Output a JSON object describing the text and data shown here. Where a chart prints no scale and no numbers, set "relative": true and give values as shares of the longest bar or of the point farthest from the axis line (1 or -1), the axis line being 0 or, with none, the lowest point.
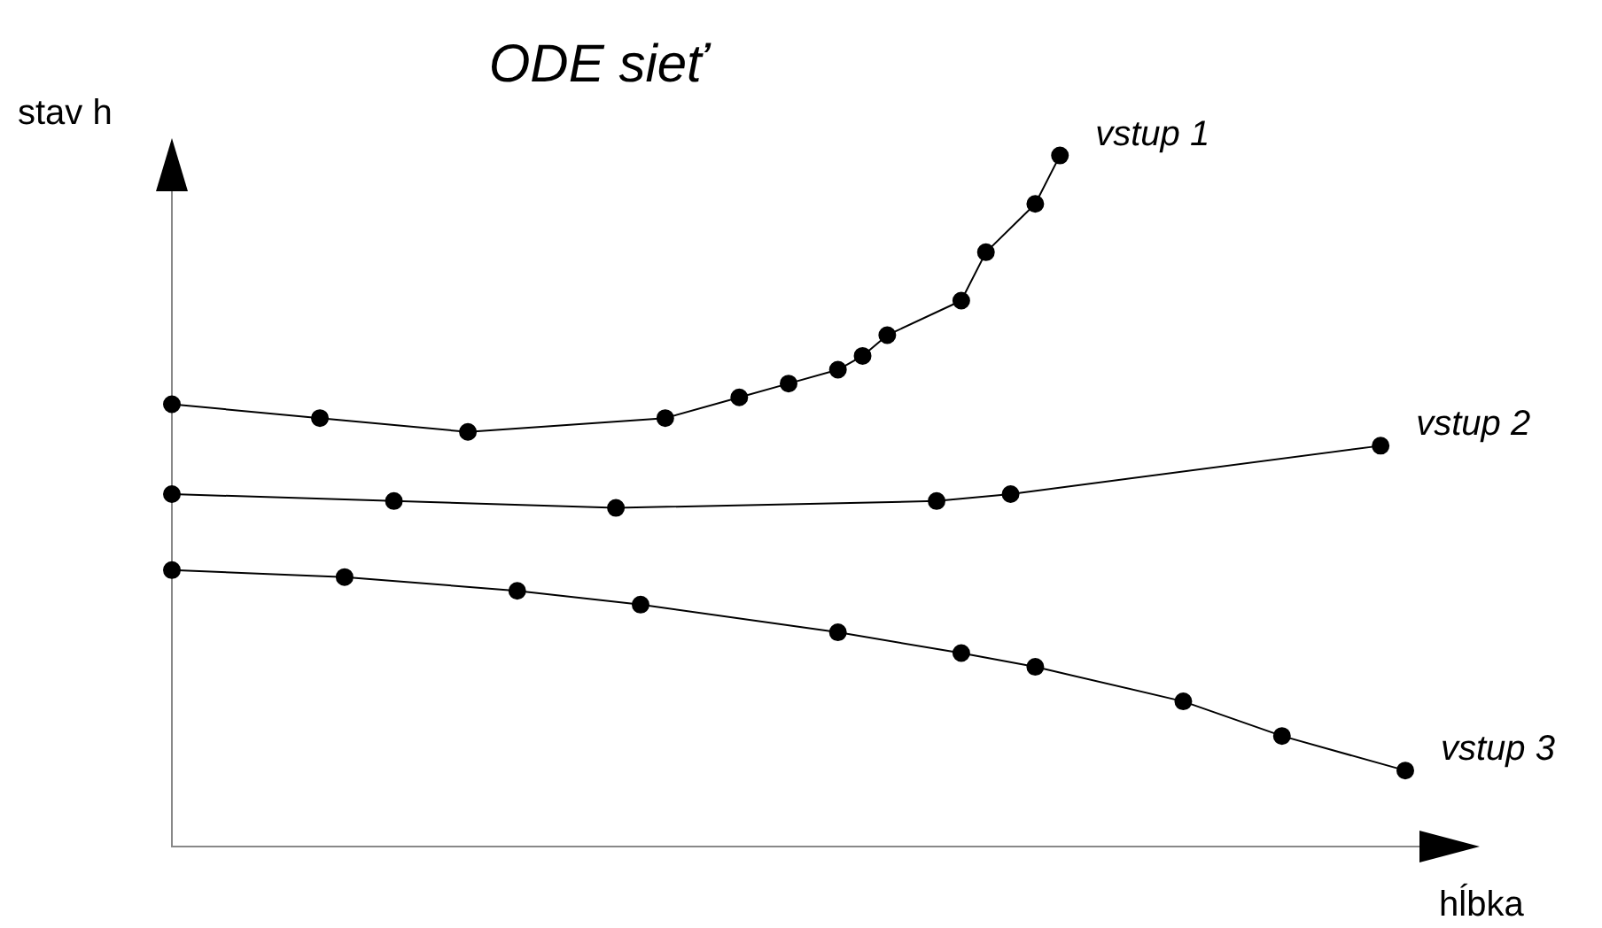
{
  "chart_data": {
    "type": "line",
    "title": "ODE sieť",
    "xlabel": "hĺbka",
    "ylabel": "stav h",
    "relative": true,
    "tick_labels": false,
    "legend": "right",
    "marker": "circle",
    "line_style": "solid",
    "categories": [
      null,
      null,
      null,
      null,
      null,
      null,
      null,
      null,
      null,
      null,
      null,
      null,
      null,
      null,
      null,
      null,
      null,
      null,
      null,
      null,
      null,
      null,
      null,
      null,
      null,
      null,
      null,
      null,
      null,
      null,
      null,
      null,
      null,
      null,
      null,
      null,
      null,
      null,
      null,
      null,
      null,
      null,
      null,
      null,
      null,
      null,
      null,
      null,
      null,
      null,
      null
    ],
    "series": [
      {
        "name": "vstup 1",
        "color": "#000000",
        "values": [
          0.64,
          null,
          null,
          null,
          null,
          null,
          0.62,
          null,
          null,
          null,
          null,
          null,
          0.6,
          null,
          null,
          null,
          null,
          null,
          null,
          null,
          0.62,
          null,
          null,
          0.65,
          null,
          0.67,
          null,
          0.69,
          0.71,
          0.74,
          null,
          null,
          0.79,
          0.86,
          null,
          0.93,
          1,
          null,
          null,
          null,
          null,
          null,
          null,
          null,
          null,
          null,
          null,
          null,
          null,
          null,
          null
        ]
      },
      {
        "name": "vstup 2",
        "color": "#000000",
        "values": [
          0.51,
          null,
          null,
          null,
          null,
          null,
          null,
          null,
          null,
          0.5,
          null,
          null,
          null,
          null,
          null,
          null,
          null,
          null,
          0.49,
          null,
          null,
          null,
          null,
          null,
          null,
          null,
          null,
          null,
          null,
          null,
          null,
          0.5,
          null,
          null,
          0.51,
          null,
          null,
          null,
          null,
          null,
          null,
          null,
          null,
          null,
          null,
          null,
          null,
          null,
          null,
          0.58,
          null
        ]
      },
      {
        "name": "vstup 3",
        "color": "#000000",
        "values": [
          0.4,
          null,
          null,
          null,
          null,
          null,
          null,
          0.39,
          null,
          null,
          null,
          null,
          null,
          null,
          0.37,
          null,
          null,
          null,
          null,
          0.35,
          null,
          null,
          null,
          null,
          null,
          null,
          null,
          0.31,
          null,
          null,
          null,
          null,
          0.28,
          null,
          null,
          0.26,
          null,
          null,
          null,
          null,
          null,
          0.21,
          null,
          null,
          null,
          0.16,
          null,
          null,
          null,
          null,
          0.11
        ]
      }
    ]
  }
}
